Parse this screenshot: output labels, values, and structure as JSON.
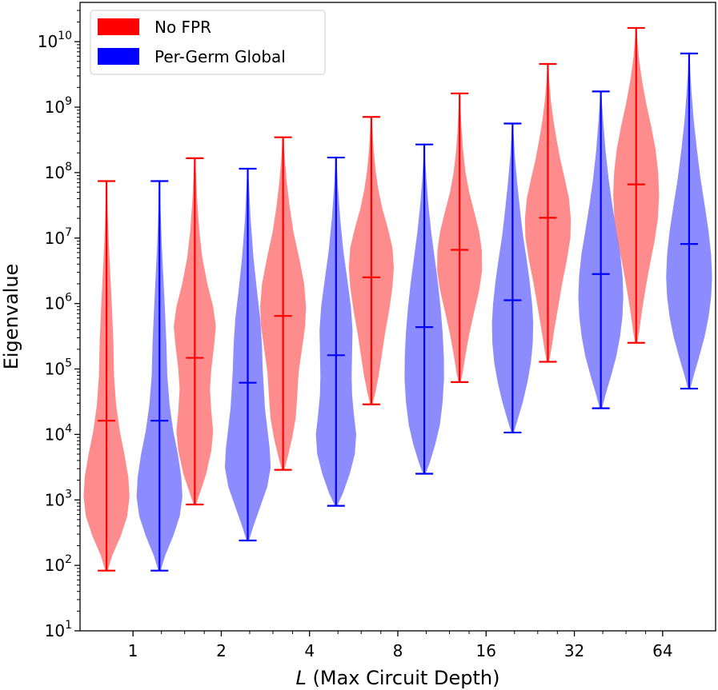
{
  "chart_data": {
    "type": "violin",
    "title": "",
    "xlabel_italic": "L",
    "xlabel_rest": " (Max Circuit Depth)",
    "ylabel": "Eigenvalue",
    "yscale": "log",
    "ylim_exp": [
      1,
      10.6
    ],
    "y_tick_exponents": [
      1,
      2,
      3,
      4,
      5,
      6,
      7,
      8,
      9,
      10
    ],
    "categories": [
      "1",
      "2",
      "4",
      "8",
      "16",
      "32",
      "64"
    ],
    "legend": {
      "placement": "top-left"
    },
    "series": [
      {
        "name": "No FPR",
        "color": "#ff0000",
        "fill_opacity": 0.45,
        "stats_log10": [
          {
            "min": 1.92,
            "median": 4.21,
            "max": 7.87
          },
          {
            "min": 2.93,
            "median": 5.17,
            "max": 8.22
          },
          {
            "min": 3.46,
            "median": 5.81,
            "max": 8.54
          },
          {
            "min": 4.46,
            "median": 6.4,
            "max": 8.85
          },
          {
            "min": 4.8,
            "median": 6.82,
            "max": 9.21
          },
          {
            "min": 5.11,
            "median": 7.31,
            "max": 9.66
          },
          {
            "min": 5.4,
            "median": 7.82,
            "max": 10.21
          }
        ],
        "violin_density": [
          [
            [
              1.92,
              0.05
            ],
            [
              2.15,
              0.25
            ],
            [
              2.45,
              0.62
            ],
            [
              2.75,
              0.9
            ],
            [
              3.05,
              1.0
            ],
            [
              3.35,
              0.95
            ],
            [
              3.7,
              0.78
            ],
            [
              4.05,
              0.58
            ],
            [
              4.45,
              0.42
            ],
            [
              4.9,
              0.33
            ],
            [
              5.4,
              0.3
            ],
            [
              5.9,
              0.24
            ],
            [
              6.4,
              0.17
            ],
            [
              6.9,
              0.1
            ],
            [
              7.4,
              0.05
            ],
            [
              7.87,
              0.02
            ]
          ],
          [
            [
              2.93,
              0.05
            ],
            [
              3.1,
              0.22
            ],
            [
              3.4,
              0.5
            ],
            [
              3.75,
              0.72
            ],
            [
              4.05,
              0.8
            ],
            [
              4.35,
              0.72
            ],
            [
              4.7,
              0.66
            ],
            [
              5.0,
              0.72
            ],
            [
              5.35,
              0.84
            ],
            [
              5.65,
              0.92
            ],
            [
              5.95,
              0.8
            ],
            [
              6.3,
              0.55
            ],
            [
              6.7,
              0.33
            ],
            [
              7.1,
              0.2
            ],
            [
              7.6,
              0.1
            ],
            [
              8.22,
              0.02
            ]
          ],
          [
            [
              3.46,
              0.05
            ],
            [
              3.65,
              0.2
            ],
            [
              3.95,
              0.4
            ],
            [
              4.25,
              0.55
            ],
            [
              4.6,
              0.62
            ],
            [
              4.95,
              0.68
            ],
            [
              5.3,
              0.82
            ],
            [
              5.65,
              0.96
            ],
            [
              5.95,
              1.0
            ],
            [
              6.3,
              0.92
            ],
            [
              6.7,
              0.7
            ],
            [
              7.1,
              0.45
            ],
            [
              7.5,
              0.28
            ],
            [
              7.9,
              0.15
            ],
            [
              8.25,
              0.07
            ],
            [
              8.54,
              0.02
            ]
          ],
          [
            [
              4.46,
              0.05
            ],
            [
              4.65,
              0.18
            ],
            [
              4.9,
              0.32
            ],
            [
              5.2,
              0.45
            ],
            [
              5.55,
              0.6
            ],
            [
              5.9,
              0.78
            ],
            [
              6.25,
              0.92
            ],
            [
              6.55,
              0.98
            ],
            [
              6.85,
              0.92
            ],
            [
              7.15,
              0.72
            ],
            [
              7.45,
              0.48
            ],
            [
              7.75,
              0.3
            ],
            [
              8.05,
              0.18
            ],
            [
              8.35,
              0.1
            ],
            [
              8.65,
              0.05
            ],
            [
              8.85,
              0.02
            ]
          ],
          [
            [
              4.8,
              0.05
            ],
            [
              4.95,
              0.14
            ],
            [
              5.2,
              0.25
            ],
            [
              5.5,
              0.4
            ],
            [
              5.85,
              0.62
            ],
            [
              6.2,
              0.85
            ],
            [
              6.5,
              0.98
            ],
            [
              6.8,
              0.97
            ],
            [
              7.1,
              0.85
            ],
            [
              7.4,
              0.64
            ],
            [
              7.7,
              0.42
            ],
            [
              8.0,
              0.26
            ],
            [
              8.35,
              0.15
            ],
            [
              8.7,
              0.08
            ],
            [
              9.0,
              0.04
            ],
            [
              9.21,
              0.02
            ]
          ],
          [
            [
              5.11,
              0.05
            ],
            [
              5.3,
              0.15
            ],
            [
              5.6,
              0.28
            ],
            [
              5.95,
              0.45
            ],
            [
              6.3,
              0.62
            ],
            [
              6.65,
              0.82
            ],
            [
              7.0,
              0.98
            ],
            [
              7.3,
              1.0
            ],
            [
              7.6,
              0.92
            ],
            [
              7.9,
              0.74
            ],
            [
              8.2,
              0.54
            ],
            [
              8.5,
              0.38
            ],
            [
              8.8,
              0.24
            ],
            [
              9.1,
              0.13
            ],
            [
              9.4,
              0.06
            ],
            [
              9.66,
              0.02
            ]
          ],
          [
            [
              5.4,
              0.05
            ],
            [
              5.6,
              0.14
            ],
            [
              5.9,
              0.26
            ],
            [
              6.25,
              0.42
            ],
            [
              6.6,
              0.6
            ],
            [
              6.95,
              0.8
            ],
            [
              7.3,
              0.95
            ],
            [
              7.65,
              1.0
            ],
            [
              8.0,
              0.96
            ],
            [
              8.35,
              0.85
            ],
            [
              8.7,
              0.66
            ],
            [
              9.05,
              0.44
            ],
            [
              9.4,
              0.26
            ],
            [
              9.75,
              0.12
            ],
            [
              10.0,
              0.06
            ],
            [
              10.21,
              0.02
            ]
          ]
        ]
      },
      {
        "name": "Per-Germ Global",
        "color": "#0000ff",
        "fill_opacity": 0.45,
        "stats_log10": [
          {
            "min": 1.92,
            "median": 4.21,
            "max": 7.87
          },
          {
            "min": 2.38,
            "median": 4.79,
            "max": 8.06
          },
          {
            "min": 2.91,
            "median": 5.21,
            "max": 8.23
          },
          {
            "min": 3.4,
            "median": 5.64,
            "max": 8.43
          },
          {
            "min": 4.03,
            "median": 6.05,
            "max": 8.75
          },
          {
            "min": 4.4,
            "median": 6.45,
            "max": 9.24
          },
          {
            "min": 4.7,
            "median": 6.91,
            "max": 9.82
          }
        ],
        "violin_density": [
          [
            [
              1.92,
              0.05
            ],
            [
              2.15,
              0.25
            ],
            [
              2.45,
              0.6
            ],
            [
              2.75,
              0.88
            ],
            [
              3.05,
              1.0
            ],
            [
              3.35,
              0.95
            ],
            [
              3.7,
              0.8
            ],
            [
              4.05,
              0.6
            ],
            [
              4.45,
              0.44
            ],
            [
              4.9,
              0.34
            ],
            [
              5.4,
              0.3
            ],
            [
              5.9,
              0.24
            ],
            [
              6.4,
              0.17
            ],
            [
              6.9,
              0.1
            ],
            [
              7.4,
              0.05
            ],
            [
              7.87,
              0.02
            ]
          ],
          [
            [
              2.38,
              0.05
            ],
            [
              2.6,
              0.25
            ],
            [
              2.9,
              0.55
            ],
            [
              3.2,
              0.85
            ],
            [
              3.5,
              1.0
            ],
            [
              3.8,
              0.95
            ],
            [
              4.1,
              0.85
            ],
            [
              4.4,
              0.75
            ],
            [
              4.7,
              0.7
            ],
            [
              5.0,
              0.65
            ],
            [
              5.35,
              0.62
            ],
            [
              5.75,
              0.55
            ],
            [
              6.2,
              0.4
            ],
            [
              6.7,
              0.25
            ],
            [
              7.3,
              0.12
            ],
            [
              8.06,
              0.02
            ]
          ],
          [
            [
              2.91,
              0.05
            ],
            [
              3.1,
              0.3
            ],
            [
              3.4,
              0.6
            ],
            [
              3.7,
              0.82
            ],
            [
              4.0,
              0.88
            ],
            [
              4.3,
              0.78
            ],
            [
              4.6,
              0.7
            ],
            [
              4.9,
              0.68
            ],
            [
              5.25,
              0.7
            ],
            [
              5.6,
              0.72
            ],
            [
              5.95,
              0.65
            ],
            [
              6.35,
              0.5
            ],
            [
              6.8,
              0.32
            ],
            [
              7.3,
              0.18
            ],
            [
              7.8,
              0.08
            ],
            [
              8.23,
              0.02
            ]
          ],
          [
            [
              3.4,
              0.05
            ],
            [
              3.55,
              0.22
            ],
            [
              3.85,
              0.48
            ],
            [
              4.15,
              0.68
            ],
            [
              4.5,
              0.8
            ],
            [
              4.85,
              0.86
            ],
            [
              5.2,
              0.85
            ],
            [
              5.55,
              0.8
            ],
            [
              5.9,
              0.72
            ],
            [
              6.3,
              0.6
            ],
            [
              6.7,
              0.45
            ],
            [
              7.1,
              0.3
            ],
            [
              7.5,
              0.18
            ],
            [
              7.9,
              0.09
            ],
            [
              8.2,
              0.04
            ],
            [
              8.43,
              0.02
            ]
          ],
          [
            [
              4.03,
              0.05
            ],
            [
              4.2,
              0.2
            ],
            [
              4.5,
              0.45
            ],
            [
              4.8,
              0.65
            ],
            [
              5.1,
              0.8
            ],
            [
              5.4,
              0.88
            ],
            [
              5.7,
              0.9
            ],
            [
              6.0,
              0.85
            ],
            [
              6.35,
              0.74
            ],
            [
              6.7,
              0.6
            ],
            [
              7.05,
              0.45
            ],
            [
              7.45,
              0.32
            ],
            [
              7.85,
              0.2
            ],
            [
              8.25,
              0.1
            ],
            [
              8.55,
              0.05
            ],
            [
              8.75,
              0.02
            ]
          ],
          [
            [
              4.4,
              0.05
            ],
            [
              4.6,
              0.2
            ],
            [
              4.9,
              0.45
            ],
            [
              5.2,
              0.68
            ],
            [
              5.5,
              0.84
            ],
            [
              5.8,
              0.94
            ],
            [
              6.1,
              0.98
            ],
            [
              6.4,
              0.95
            ],
            [
              6.75,
              0.85
            ],
            [
              7.1,
              0.68
            ],
            [
              7.5,
              0.5
            ],
            [
              7.9,
              0.34
            ],
            [
              8.35,
              0.2
            ],
            [
              8.8,
              0.1
            ],
            [
              9.05,
              0.05
            ],
            [
              9.24,
              0.02
            ]
          ],
          [
            [
              4.7,
              0.05
            ],
            [
              4.9,
              0.2
            ],
            [
              5.2,
              0.45
            ],
            [
              5.5,
              0.68
            ],
            [
              5.8,
              0.85
            ],
            [
              6.1,
              0.96
            ],
            [
              6.4,
              1.0
            ],
            [
              6.75,
              0.96
            ],
            [
              7.1,
              0.85
            ],
            [
              7.5,
              0.68
            ],
            [
              7.9,
              0.5
            ],
            [
              8.35,
              0.34
            ],
            [
              8.8,
              0.2
            ],
            [
              9.25,
              0.1
            ],
            [
              9.55,
              0.05
            ],
            [
              9.82,
              0.02
            ]
          ]
        ]
      }
    ]
  }
}
